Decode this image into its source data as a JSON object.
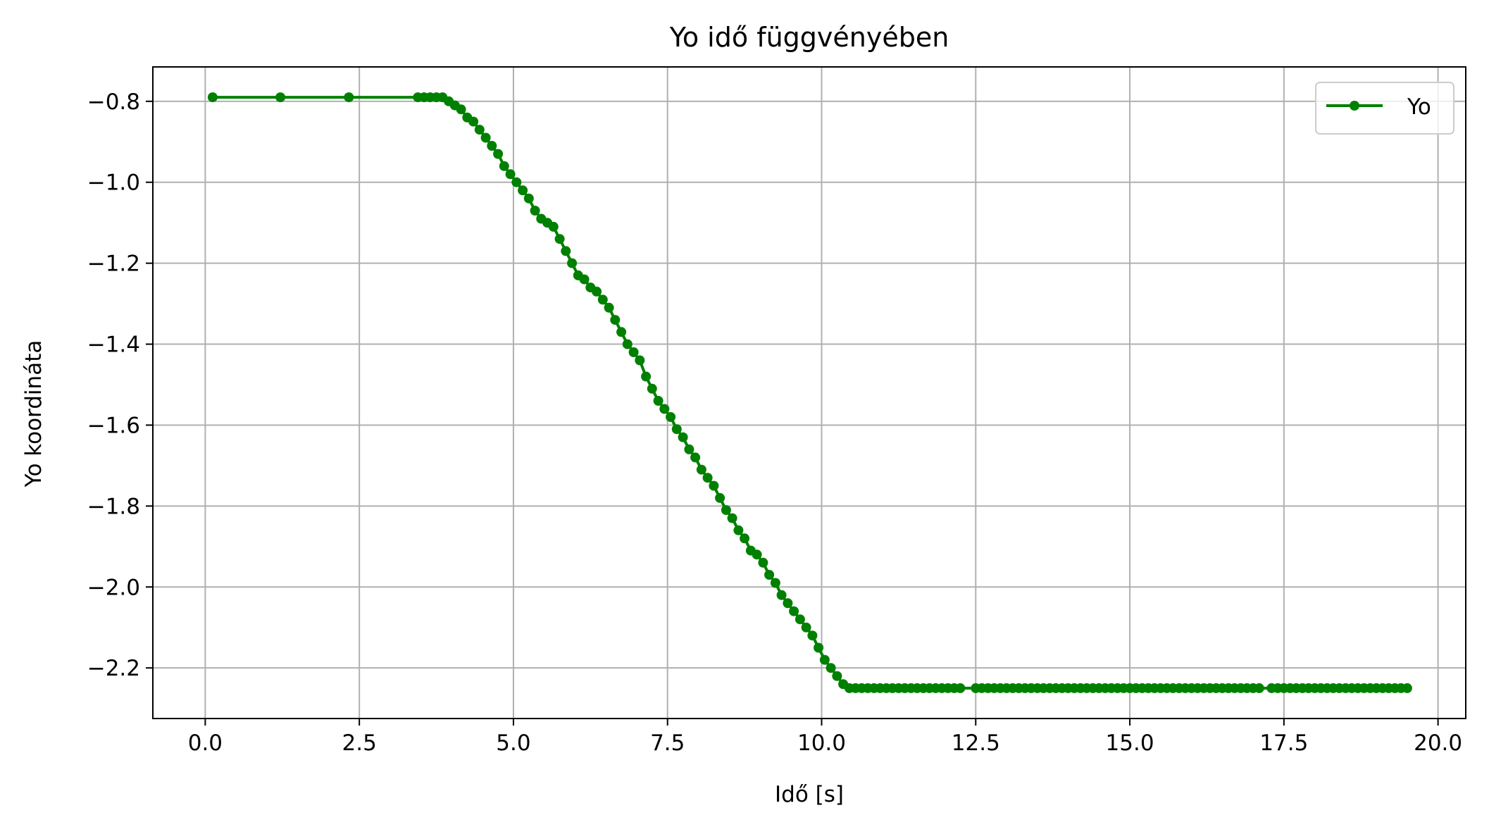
{
  "chart_data": {
    "type": "line",
    "title": "Yo idő függvényében",
    "xlabel": "Idő [s]",
    "ylabel": "Yo koordináta",
    "xlim": [
      -0.85,
      20.45
    ],
    "ylim": [
      -2.325,
      -0.715
    ],
    "xticks": [
      0.0,
      2.5,
      5.0,
      7.5,
      10.0,
      12.5,
      15.0,
      17.5,
      20.0
    ],
    "xtick_labels": [
      "0.0",
      "2.5",
      "5.0",
      "7.5",
      "10.0",
      "12.5",
      "15.0",
      "17.5",
      "20.0"
    ],
    "yticks": [
      -0.8,
      -1.0,
      -1.2,
      -1.4,
      -1.6,
      -1.8,
      -2.0,
      -2.2
    ],
    "ytick_labels": [
      "−0.8",
      "−1.0",
      "−1.2",
      "−1.4",
      "−1.6",
      "−1.8",
      "−2.0",
      "−2.2"
    ],
    "grid": true,
    "legend_position": "top-right",
    "series": [
      {
        "name": "Yo",
        "color": "#008000",
        "marker": "circle",
        "x": [
          0.12,
          1.22,
          2.33,
          3.45,
          3.55,
          3.65,
          3.75,
          3.85,
          3.95,
          4.05,
          4.15,
          4.25,
          4.35,
          4.45,
          4.55,
          4.65,
          4.75,
          4.85,
          4.95,
          5.05,
          5.15,
          5.25,
          5.35,
          5.45,
          5.55,
          5.65,
          5.75,
          5.85,
          5.95,
          6.05,
          6.15,
          6.25,
          6.35,
          6.45,
          6.55,
          6.65,
          6.75,
          6.85,
          6.95,
          7.05,
          7.15,
          7.25,
          7.35,
          7.45,
          7.55,
          7.65,
          7.75,
          7.85,
          7.95,
          8.05,
          8.15,
          8.25,
          8.35,
          8.45,
          8.55,
          8.65,
          8.75,
          8.85,
          8.95,
          9.05,
          9.15,
          9.25,
          9.35,
          9.45,
          9.55,
          9.65,
          9.75,
          9.85,
          9.95,
          10.05,
          10.15,
          10.25,
          10.35,
          10.45,
          10.55,
          10.65,
          10.75,
          10.85,
          10.95,
          11.05,
          11.15,
          11.25,
          11.35,
          11.45,
          11.55,
          11.65,
          11.75,
          11.85,
          11.95,
          12.05,
          12.15,
          12.25,
          12.5,
          12.6,
          12.7,
          12.8,
          12.9,
          13.0,
          13.1,
          13.2,
          13.3,
          13.4,
          13.5,
          13.6,
          13.7,
          13.8,
          13.9,
          14.0,
          14.1,
          14.2,
          14.3,
          14.4,
          14.5,
          14.6,
          14.7,
          14.8,
          14.9,
          15.0,
          15.1,
          15.2,
          15.3,
          15.4,
          15.5,
          15.6,
          15.7,
          15.8,
          15.9,
          16.0,
          16.1,
          16.2,
          16.3,
          16.4,
          16.5,
          16.6,
          16.7,
          16.8,
          16.9,
          17.0,
          17.1,
          17.3,
          17.4,
          17.5,
          17.6,
          17.7,
          17.8,
          17.9,
          18.0,
          18.1,
          18.2,
          18.3,
          18.4,
          18.5,
          18.6,
          18.7,
          18.8,
          18.9,
          19.0,
          19.1,
          19.2,
          19.3,
          19.4,
          19.5
        ],
        "y": [
          -0.79,
          -0.79,
          -0.79,
          -0.79,
          -0.79,
          -0.79,
          -0.79,
          -0.79,
          -0.8,
          -0.81,
          -0.82,
          -0.84,
          -0.85,
          -0.87,
          -0.89,
          -0.91,
          -0.93,
          -0.96,
          -0.98,
          -1.0,
          -1.02,
          -1.04,
          -1.07,
          -1.09,
          -1.1,
          -1.11,
          -1.14,
          -1.17,
          -1.2,
          -1.23,
          -1.24,
          -1.26,
          -1.27,
          -1.29,
          -1.31,
          -1.34,
          -1.37,
          -1.4,
          -1.42,
          -1.44,
          -1.48,
          -1.51,
          -1.54,
          -1.56,
          -1.58,
          -1.61,
          -1.63,
          -1.66,
          -1.68,
          -1.71,
          -1.73,
          -1.75,
          -1.78,
          -1.81,
          -1.83,
          -1.86,
          -1.88,
          -1.91,
          -1.92,
          -1.94,
          -1.97,
          -1.99,
          -2.02,
          -2.04,
          -2.06,
          -2.08,
          -2.1,
          -2.12,
          -2.15,
          -2.18,
          -2.2,
          -2.22,
          -2.24,
          -2.25,
          -2.25,
          -2.25,
          -2.25,
          -2.25,
          -2.25,
          -2.25,
          -2.25,
          -2.25,
          -2.25,
          -2.25,
          -2.25,
          -2.25,
          -2.25,
          -2.25,
          -2.25,
          -2.25,
          -2.25,
          -2.25,
          -2.25,
          -2.25,
          -2.25,
          -2.25,
          -2.25,
          -2.25,
          -2.25,
          -2.25,
          -2.25,
          -2.25,
          -2.25,
          -2.25,
          -2.25,
          -2.25,
          -2.25,
          -2.25,
          -2.25,
          -2.25,
          -2.25,
          -2.25,
          -2.25,
          -2.25,
          -2.25,
          -2.25,
          -2.25,
          -2.25,
          -2.25,
          -2.25,
          -2.25,
          -2.25,
          -2.25,
          -2.25,
          -2.25,
          -2.25,
          -2.25,
          -2.25,
          -2.25,
          -2.25,
          -2.25,
          -2.25,
          -2.25,
          -2.25,
          -2.25,
          -2.25,
          -2.25,
          -2.25,
          -2.25,
          -2.25,
          -2.25,
          -2.25,
          -2.25,
          -2.25,
          -2.25,
          -2.25,
          -2.25,
          -2.25,
          -2.25,
          -2.25,
          -2.25,
          -2.25,
          -2.25,
          -2.25,
          -2.25,
          -2.25,
          -2.25,
          -2.25,
          -2.25,
          -2.25,
          -2.25,
          -2.25
        ]
      }
    ]
  }
}
